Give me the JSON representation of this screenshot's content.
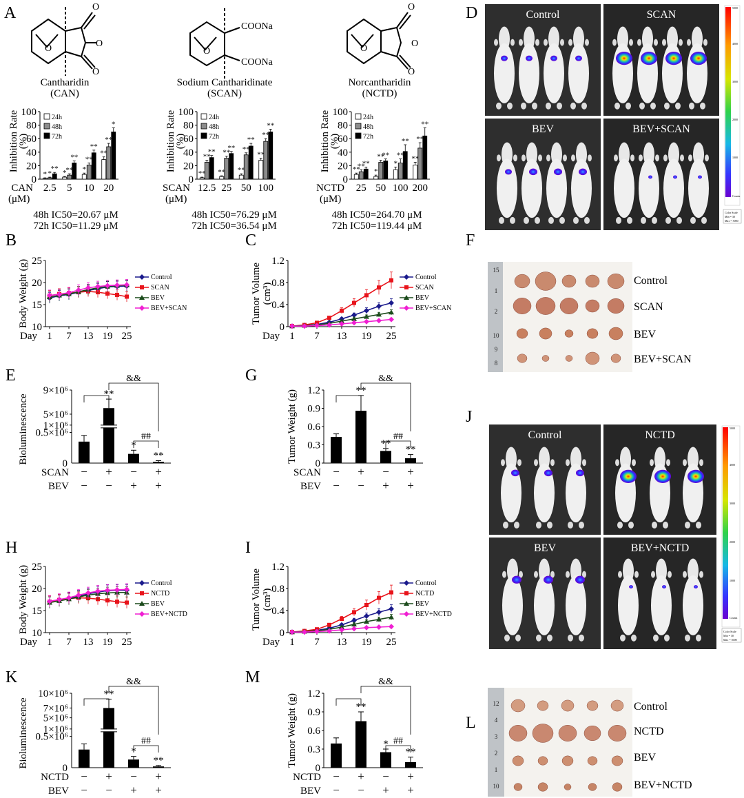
{
  "figure": {
    "panels": {
      "A": {
        "letter": "A",
        "compounds": [
          {
            "name": "Cantharidin",
            "abbr": "(CAN)",
            "ic48": "48h IC50=20.67 μM",
            "ic72": "72h IC50=11.29 μM",
            "drug": "CAN",
            "unit": "(μM)"
          },
          {
            "name": "Sodium Cantharidinate",
            "abbr": "(SCAN)",
            "ic48": "48h IC50=76.29 μM",
            "ic72": "72h IC50=36.54 μM",
            "drug": "SCAN",
            "unit": "(μM)",
            "cooh1": "COONa",
            "cooh2": "COONa"
          },
          {
            "name": "Norcantharidin",
            "abbr": "(NCTD)",
            "ic48": "48h IC50=264.70 μM",
            "ic72": "72h IC50=119.44 μM",
            "drug": "NCTD",
            "unit": "(μM)"
          }
        ]
      },
      "D": {
        "letter": "D",
        "labels": [
          "Control",
          "SCAN",
          "BEV",
          "BEV+SCAN"
        ],
        "colorbar": {
          "top": "5000",
          "bottom": "Counts",
          "ticks": [
            "4000",
            "3000",
            "2000",
            "1000"
          ],
          "scale": [
            "Color Scale",
            "Min = 30",
            "Max = 5000"
          ]
        }
      },
      "J": {
        "letter": "J",
        "labels": [
          "Control",
          "NCTD",
          "BEV",
          "BEV+NCTD"
        ],
        "colorbar": {
          "top": "5000",
          "bottom": "Counts",
          "ticks": [
            "4000",
            "3000",
            "2000",
            "1000"
          ],
          "scale": [
            "Color Scale",
            "Min = 30",
            "Max = 5000"
          ]
        }
      },
      "F": {
        "letter": "F",
        "rows": [
          "Control",
          "SCAN",
          "BEV",
          "BEV+SCAN"
        ],
        "ruler": [
          "15",
          "1",
          "2",
          "10",
          "9",
          "8"
        ]
      },
      "L": {
        "letter": "L",
        "rows": [
          "Control",
          "NCTD",
          "BEV",
          "BEV+NCTD"
        ],
        "ruler": [
          "12",
          "4",
          "3",
          "2",
          "1",
          "10"
        ]
      },
      "letters": {
        "B": "B",
        "C": "C",
        "E": "E",
        "G": "G",
        "H": "H",
        "I": "I",
        "K": "K",
        "M": "M"
      }
    }
  },
  "chart_data": [
    {
      "id": "A-CAN",
      "type": "bar",
      "ylabel": "Inhibition Rate (%)",
      "ylim": [
        0,
        100
      ],
      "yticks": [
        0,
        20,
        40,
        60,
        80,
        100
      ],
      "categories": [
        "2.5",
        "5",
        "10",
        "20"
      ],
      "xprefix": "CAN",
      "xunit": "(μM)",
      "series": [
        {
          "name": "24h",
          "values": [
            1,
            3,
            7,
            29
          ]
        },
        {
          "name": "48h",
          "values": [
            2,
            6,
            21,
            48
          ]
        },
        {
          "name": "72h",
          "values": [
            8,
            24,
            39,
            70
          ]
        }
      ],
      "errors": [
        [
          1,
          1,
          2,
          4
        ],
        [
          1,
          2,
          3,
          5
        ],
        [
          2,
          3,
          4,
          6
        ]
      ],
      "sig": [
        [
          "*",
          "*",
          "*",
          "**"
        ],
        [
          "*",
          "**",
          "**",
          "**"
        ],
        [
          "**",
          "**",
          "**",
          "*"
        ]
      ]
    },
    {
      "id": "A-SCAN",
      "type": "bar",
      "ylabel": "Inhibition Rate (%)",
      "ylim": [
        0,
        100
      ],
      "yticks": [
        0,
        20,
        40,
        60,
        80,
        100
      ],
      "categories": [
        "12.5",
        "25",
        "50",
        "100"
      ],
      "xprefix": "SCAN",
      "xunit": "(μM)",
      "series": [
        {
          "name": "24h",
          "values": [
            2,
            4,
            6,
            28
          ]
        },
        {
          "name": "48h",
          "values": [
            25,
            31,
            36,
            56
          ]
        },
        {
          "name": "72h",
          "values": [
            32,
            38,
            49,
            70
          ]
        }
      ],
      "errors": [
        [
          1,
          1,
          2,
          3
        ],
        [
          3,
          3,
          3,
          4
        ],
        [
          3,
          3,
          4,
          4
        ]
      ],
      "sig": [
        [
          "**",
          "**",
          "**",
          "**"
        ],
        [
          "**",
          "**",
          "**",
          "**"
        ],
        [
          "**",
          "**",
          "**",
          "**"
        ]
      ]
    },
    {
      "id": "A-NCTD",
      "type": "bar",
      "ylabel": "Inhibition Rate (%)",
      "ylim": [
        0,
        100
      ],
      "yticks": [
        0,
        20,
        40,
        60,
        80,
        100
      ],
      "categories": [
        "25",
        "50",
        "100",
        "200"
      ],
      "xprefix": "NCTD",
      "xunit": "(μM)",
      "series": [
        {
          "name": "24h",
          "values": [
            7,
            4,
            14,
            21
          ]
        },
        {
          "name": "48h",
          "values": [
            11,
            25,
            24,
            46
          ]
        },
        {
          "name": "72h",
          "values": [
            15,
            27,
            41,
            64
          ]
        }
      ],
      "errors": [
        [
          2,
          2,
          4,
          4
        ],
        [
          3,
          3,
          6,
          8
        ],
        [
          3,
          3,
          10,
          12
        ]
      ],
      "sig": [
        [
          "**",
          "*",
          "*",
          "**"
        ],
        [
          "**",
          "**",
          "**",
          "**"
        ],
        [
          "**",
          "**",
          "**",
          "**"
        ]
      ]
    },
    {
      "id": "B",
      "type": "line",
      "ylabel": "Body Weight (g)",
      "ylim": [
        10,
        25
      ],
      "yticks": [
        10,
        15,
        20,
        25
      ],
      "xprefix": "Day",
      "x": [
        1,
        4,
        7,
        10,
        13,
        16,
        19,
        22,
        25
      ],
      "xticks": [
        1,
        7,
        13,
        19,
        25
      ],
      "series": [
        {
          "name": "Control",
          "color": "#1a1a8c",
          "marker": "diamond",
          "values": [
            16.5,
            17.0,
            17.3,
            17.8,
            18.2,
            18.6,
            19.0,
            19.1,
            19.2
          ]
        },
        {
          "name": "SCAN",
          "color": "#e8141b",
          "marker": "square",
          "values": [
            17.0,
            17.4,
            17.6,
            17.8,
            18.0,
            17.8,
            17.5,
            17.2,
            16.8
          ]
        },
        {
          "name": "BEV",
          "color": "#1c4b1c",
          "marker": "triangle",
          "values": [
            16.7,
            17.1,
            17.4,
            17.9,
            18.4,
            18.8,
            19.1,
            19.3,
            19.4
          ]
        },
        {
          "name": "BEV+SCAN",
          "color": "#f01ed2",
          "marker": "diamond",
          "values": [
            17.1,
            17.3,
            17.7,
            18.3,
            18.8,
            19.1,
            19.3,
            19.4,
            19.5
          ]
        }
      ],
      "error": 1.2
    },
    {
      "id": "C",
      "type": "line",
      "ylabel": "Tumor Volume (cm³)",
      "ylim": [
        0,
        1.2
      ],
      "yticks": [
        0,
        0.4,
        0.8,
        1.2
      ],
      "xprefix": "Day",
      "x": [
        1,
        4,
        7,
        10,
        13,
        16,
        19,
        22,
        25
      ],
      "xticks": [
        1,
        7,
        13,
        19,
        25
      ],
      "series": [
        {
          "name": "Control",
          "color": "#1a1a8c",
          "marker": "diamond",
          "values": [
            0.01,
            0.02,
            0.04,
            0.08,
            0.14,
            0.21,
            0.29,
            0.37,
            0.43
          ]
        },
        {
          "name": "SCAN",
          "color": "#e8141b",
          "marker": "square",
          "values": [
            0.01,
            0.03,
            0.07,
            0.16,
            0.29,
            0.43,
            0.57,
            0.71,
            0.84
          ]
        },
        {
          "name": "BEV",
          "color": "#1c4b1c",
          "marker": "triangle",
          "values": [
            0.01,
            0.02,
            0.03,
            0.06,
            0.1,
            0.14,
            0.18,
            0.22,
            0.26
          ]
        },
        {
          "name": "BEV+SCAN",
          "color": "#f01ed2",
          "marker": "diamond",
          "values": [
            0.01,
            0.01,
            0.02,
            0.03,
            0.05,
            0.07,
            0.09,
            0.11,
            0.13
          ]
        }
      ],
      "errorFrac": 0.18
    },
    {
      "id": "E",
      "type": "bar",
      "ylabel": "Bioluminescence",
      "segments": [
        [
          0,
          500000,
          0,
          0.42
        ],
        [
          500000,
          1000000,
          0.42,
          0.52
        ],
        [
          5000000,
          9000000,
          0.67,
          1.0
        ]
      ],
      "yticks": [
        {
          "v": 500000,
          "label": "0.5×10⁶"
        },
        {
          "v": 1000000,
          "label": "1×10⁶"
        },
        {
          "v": 5000000,
          "label": "5×10⁶"
        },
        {
          "v": 9000000,
          "label": "9×10⁶"
        }
      ],
      "values": [
        350000,
        6000000,
        150000,
        20000
      ],
      "errors": [
        100000,
        1500000,
        60000,
        20000
      ],
      "sig": [
        "",
        "**",
        "*",
        "**"
      ],
      "rows": [
        {
          "label": "SCAN",
          "signs": [
            "−",
            "+",
            "−",
            "+"
          ]
        },
        {
          "label": "BEV",
          "signs": [
            "−",
            "−",
            "+",
            "+"
          ]
        }
      ],
      "brackets": [
        {
          "from": 0,
          "to": 1,
          "level": 1
        },
        {
          "from": 1,
          "to": 3,
          "level": 2,
          "text": "&&"
        },
        {
          "from": 2,
          "to": 3,
          "level": 0,
          "text": "##"
        }
      ]
    },
    {
      "id": "G",
      "type": "bar",
      "ylabel": "Tumor Weight (g)",
      "ylim": [
        0,
        1.2
      ],
      "yticks": [
        0,
        0.3,
        0.6,
        0.9,
        1.2
      ],
      "values": [
        0.43,
        0.86,
        0.2,
        0.08
      ],
      "errors": [
        0.05,
        0.25,
        0.04,
        0.06
      ],
      "sig": [
        "",
        "**",
        "**",
        "**"
      ],
      "rows": [
        {
          "label": "SCAN",
          "signs": [
            "−",
            "+",
            "−",
            "+"
          ]
        },
        {
          "label": "BEV",
          "signs": [
            "−",
            "−",
            "+",
            "+"
          ]
        }
      ],
      "brackets": [
        {
          "from": 0,
          "to": 1,
          "level": 1
        },
        {
          "from": 1,
          "to": 3,
          "level": 2,
          "text": "&&"
        },
        {
          "from": 2,
          "to": 3,
          "level": 0,
          "text": "##"
        }
      ]
    },
    {
      "id": "H",
      "type": "line",
      "ylabel": "Body Weight (g)",
      "ylim": [
        10,
        25
      ],
      "yticks": [
        10,
        15,
        20,
        25
      ],
      "xprefix": "Day",
      "x": [
        1,
        4,
        7,
        10,
        13,
        16,
        19,
        22,
        25
      ],
      "xticks": [
        1,
        7,
        13,
        19,
        25
      ],
      "series": [
        {
          "name": "Control",
          "color": "#1a1a8c",
          "marker": "diamond",
          "values": [
            17.0,
            17.4,
            17.8,
            18.3,
            18.8,
            19.2,
            19.5,
            19.6,
            19.6
          ]
        },
        {
          "name": "NCTD",
          "color": "#e8141b",
          "marker": "square",
          "values": [
            17.0,
            17.4,
            17.7,
            17.9,
            17.8,
            17.6,
            17.3,
            17.0,
            16.8
          ]
        },
        {
          "name": "BEV",
          "color": "#1c4b1c",
          "marker": "triangle",
          "values": [
            16.8,
            17.2,
            17.6,
            18.1,
            18.5,
            18.8,
            19.0,
            19.1,
            19.1
          ]
        },
        {
          "name": "BEV+NCTD",
          "color": "#f01ed2",
          "marker": "diamond",
          "values": [
            17.1,
            17.5,
            17.9,
            18.5,
            19.0,
            19.4,
            19.6,
            19.7,
            19.8
          ]
        }
      ],
      "error": 1.3
    },
    {
      "id": "I",
      "type": "line",
      "ylabel": "Tumor Volume (cm³)",
      "ylim": [
        0,
        1.2
      ],
      "yticks": [
        0,
        0.4,
        0.8,
        1.2
      ],
      "xprefix": "Day",
      "x": [
        1,
        4,
        7,
        10,
        13,
        16,
        19,
        22,
        25
      ],
      "xticks": [
        1,
        7,
        13,
        19,
        25
      ],
      "series": [
        {
          "name": "Control",
          "color": "#1a1a8c",
          "marker": "diamond",
          "values": [
            0.01,
            0.02,
            0.04,
            0.08,
            0.14,
            0.22,
            0.3,
            0.37,
            0.43
          ]
        },
        {
          "name": "NCTD",
          "color": "#e8141b",
          "marker": "square",
          "values": [
            0.01,
            0.03,
            0.06,
            0.14,
            0.25,
            0.37,
            0.5,
            0.63,
            0.73
          ]
        },
        {
          "name": "BEV",
          "color": "#1c4b1c",
          "marker": "triangle",
          "values": [
            0.01,
            0.02,
            0.03,
            0.06,
            0.1,
            0.15,
            0.2,
            0.24,
            0.28
          ]
        },
        {
          "name": "BEV+NCTD",
          "color": "#f01ed2",
          "marker": "diamond",
          "values": [
            0.01,
            0.01,
            0.02,
            0.03,
            0.05,
            0.07,
            0.09,
            0.1,
            0.11
          ]
        }
      ],
      "errorFrac": 0.18
    },
    {
      "id": "K",
      "type": "bar",
      "ylabel": "Bioluminescence",
      "segments": [
        [
          0,
          500000,
          0,
          0.42
        ],
        [
          500000,
          1000000,
          0.42,
          0.52
        ],
        [
          5000000,
          10000000,
          0.67,
          1.0
        ]
      ],
      "yticks": [
        {
          "v": 500000,
          "label": "0.5×10⁶"
        },
        {
          "v": 1000000,
          "label": "1×10⁶"
        },
        {
          "v": 5000000,
          "label": "5×10⁶"
        },
        {
          "v": 7000000,
          "label": "7×10⁶"
        },
        {
          "v": 10000000,
          "label": "10×10⁶"
        }
      ],
      "values": [
        290000,
        7000000,
        130000,
        20000
      ],
      "errors": [
        90000,
        1800000,
        50000,
        15000
      ],
      "sig": [
        "",
        "**",
        "*",
        "**"
      ],
      "rows": [
        {
          "label": "NCTD",
          "signs": [
            "−",
            "+",
            "−",
            "+"
          ]
        },
        {
          "label": "BEV",
          "signs": [
            "−",
            "−",
            "+",
            "+"
          ]
        }
      ],
      "brackets": [
        {
          "from": 0,
          "to": 1,
          "level": 1
        },
        {
          "from": 1,
          "to": 3,
          "level": 2,
          "text": "&&"
        },
        {
          "from": 2,
          "to": 3,
          "level": 0,
          "text": "##"
        }
      ]
    },
    {
      "id": "M",
      "type": "bar",
      "ylabel": "Tumor Weight (g)",
      "ylim": [
        0,
        1.2
      ],
      "yticks": [
        0,
        0.3,
        0.6,
        0.9,
        1.2
      ],
      "values": [
        0.39,
        0.75,
        0.25,
        0.09
      ],
      "errors": [
        0.09,
        0.15,
        0.05,
        0.08
      ],
      "sig": [
        "",
        "**",
        "*",
        "**"
      ],
      "rows": [
        {
          "label": "NCTD",
          "signs": [
            "−",
            "+",
            "−",
            "+"
          ]
        },
        {
          "label": "BEV",
          "signs": [
            "−",
            "−",
            "+",
            "+"
          ]
        }
      ],
      "brackets": [
        {
          "from": 0,
          "to": 1,
          "level": 1
        },
        {
          "from": 1,
          "to": 3,
          "level": 2,
          "text": "&&"
        },
        {
          "from": 2,
          "to": 3,
          "level": 0,
          "text": "##"
        }
      ]
    }
  ]
}
